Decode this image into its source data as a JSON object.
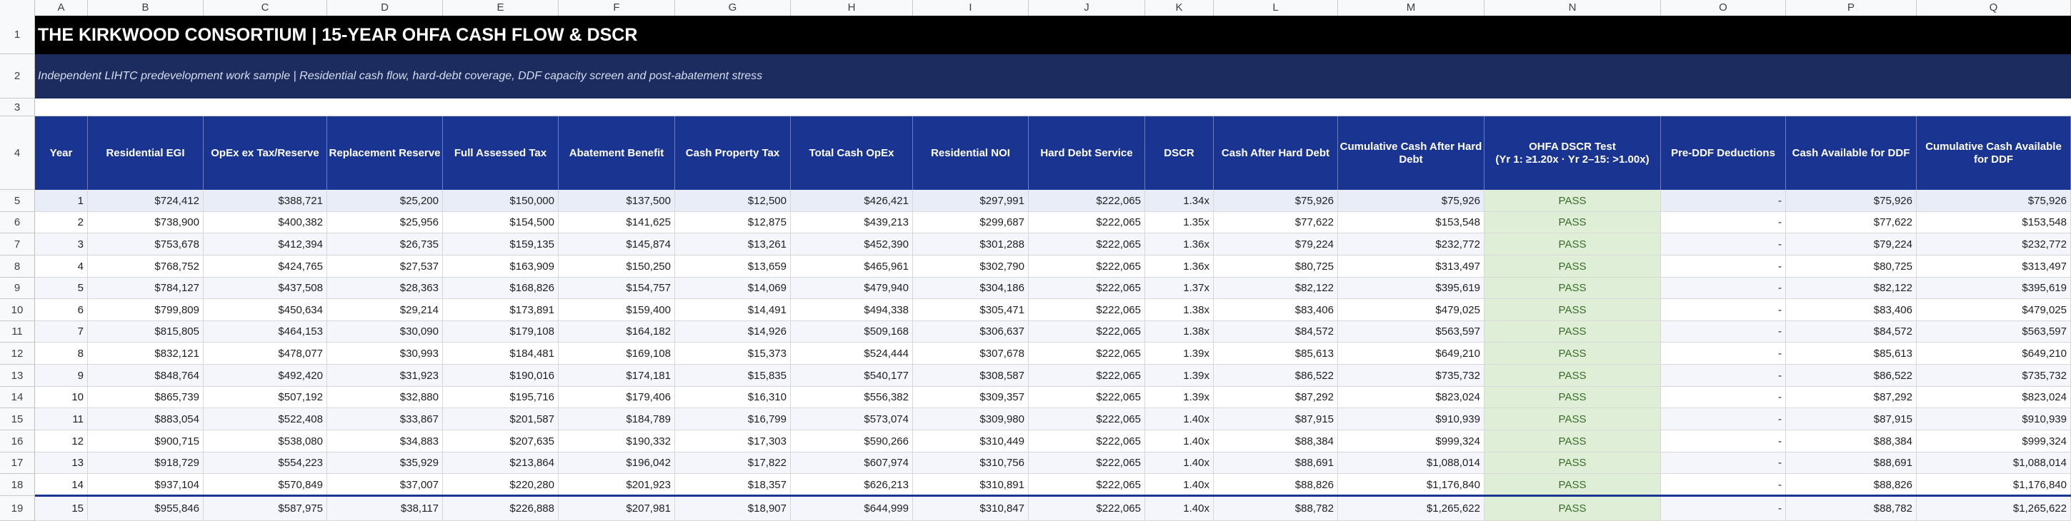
{
  "column_letters": [
    "A",
    "B",
    "C",
    "D",
    "E",
    "F",
    "G",
    "H",
    "I",
    "J",
    "K",
    "L",
    "M",
    "N",
    "O",
    "P",
    "Q"
  ],
  "row_numbers": [
    "1",
    "2",
    "3",
    "4",
    "5",
    "6",
    "7",
    "8",
    "9",
    "10",
    "11",
    "12",
    "13",
    "14",
    "15",
    "16",
    "17",
    "18",
    "19"
  ],
  "title": "THE KIRKWOOD CONSORTIUM | 15-YEAR OHFA CASH FLOW & DSCR",
  "subtitle": "Independent LIHTC predevelopment work sample | Residential cash flow, hard-debt coverage, DDF capacity screen and post-abatement stress",
  "headers": [
    "Year",
    "Residential EGI",
    "OpEx ex Tax/Reserve",
    "Replacement Reserve",
    "Full Assessed Tax",
    "Abatement Benefit",
    "Cash Property Tax",
    "Total Cash OpEx",
    "Residential NOI",
    "Hard Debt Service",
    "DSCR",
    "Cash After Hard Debt",
    "Cumulative Cash After Hard Debt",
    "OHFA DSCR Test\n(Yr 1: ≥1.20x · Yr 2–15: >1.00x)",
    "Pre-DDF Deductions",
    "Cash Available for DDF",
    "Cumulative Cash Available for DDF"
  ],
  "rows": [
    [
      "1",
      "$724,412",
      "$388,721",
      "$25,200",
      "$150,000",
      "$137,500",
      "$12,500",
      "$426,421",
      "$297,991",
      "$222,065",
      "1.34x",
      "$75,926",
      "$75,926",
      "PASS",
      "-",
      "$75,926",
      "$75,926"
    ],
    [
      "2",
      "$738,900",
      "$400,382",
      "$25,956",
      "$154,500",
      "$141,625",
      "$12,875",
      "$439,213",
      "$299,687",
      "$222,065",
      "1.35x",
      "$77,622",
      "$153,548",
      "PASS",
      "-",
      "$77,622",
      "$153,548"
    ],
    [
      "3",
      "$753,678",
      "$412,394",
      "$26,735",
      "$159,135",
      "$145,874",
      "$13,261",
      "$452,390",
      "$301,288",
      "$222,065",
      "1.36x",
      "$79,224",
      "$232,772",
      "PASS",
      "-",
      "$79,224",
      "$232,772"
    ],
    [
      "4",
      "$768,752",
      "$424,765",
      "$27,537",
      "$163,909",
      "$150,250",
      "$13,659",
      "$465,961",
      "$302,790",
      "$222,065",
      "1.36x",
      "$80,725",
      "$313,497",
      "PASS",
      "-",
      "$80,725",
      "$313,497"
    ],
    [
      "5",
      "$784,127",
      "$437,508",
      "$28,363",
      "$168,826",
      "$154,757",
      "$14,069",
      "$479,940",
      "$304,186",
      "$222,065",
      "1.37x",
      "$82,122",
      "$395,619",
      "PASS",
      "-",
      "$82,122",
      "$395,619"
    ],
    [
      "6",
      "$799,809",
      "$450,634",
      "$29,214",
      "$173,891",
      "$159,400",
      "$14,491",
      "$494,338",
      "$305,471",
      "$222,065",
      "1.38x",
      "$83,406",
      "$479,025",
      "PASS",
      "-",
      "$83,406",
      "$479,025"
    ],
    [
      "7",
      "$815,805",
      "$464,153",
      "$30,090",
      "$179,108",
      "$164,182",
      "$14,926",
      "$509,168",
      "$306,637",
      "$222,065",
      "1.38x",
      "$84,572",
      "$563,597",
      "PASS",
      "-",
      "$84,572",
      "$563,597"
    ],
    [
      "8",
      "$832,121",
      "$478,077",
      "$30,993",
      "$184,481",
      "$169,108",
      "$15,373",
      "$524,444",
      "$307,678",
      "$222,065",
      "1.39x",
      "$85,613",
      "$649,210",
      "PASS",
      "-",
      "$85,613",
      "$649,210"
    ],
    [
      "9",
      "$848,764",
      "$492,420",
      "$31,923",
      "$190,016",
      "$174,181",
      "$15,835",
      "$540,177",
      "$308,587",
      "$222,065",
      "1.39x",
      "$86,522",
      "$735,732",
      "PASS",
      "-",
      "$86,522",
      "$735,732"
    ],
    [
      "10",
      "$865,739",
      "$507,192",
      "$32,880",
      "$195,716",
      "$179,406",
      "$16,310",
      "$556,382",
      "$309,357",
      "$222,065",
      "1.39x",
      "$87,292",
      "$823,024",
      "PASS",
      "-",
      "$87,292",
      "$823,024"
    ],
    [
      "11",
      "$883,054",
      "$522,408",
      "$33,867",
      "$201,587",
      "$184,789",
      "$16,799",
      "$573,074",
      "$309,980",
      "$222,065",
      "1.40x",
      "$87,915",
      "$910,939",
      "PASS",
      "-",
      "$87,915",
      "$910,939"
    ],
    [
      "12",
      "$900,715",
      "$538,080",
      "$34,883",
      "$207,635",
      "$190,332",
      "$17,303",
      "$590,266",
      "$310,449",
      "$222,065",
      "1.40x",
      "$88,384",
      "$999,324",
      "PASS",
      "-",
      "$88,384",
      "$999,324"
    ],
    [
      "13",
      "$918,729",
      "$554,223",
      "$35,929",
      "$213,864",
      "$196,042",
      "$17,822",
      "$607,974",
      "$310,756",
      "$222,065",
      "1.40x",
      "$88,691",
      "$1,088,014",
      "PASS",
      "-",
      "$88,691",
      "$1,088,014"
    ],
    [
      "14",
      "$937,104",
      "$570,849",
      "$37,007",
      "$220,280",
      "$201,923",
      "$18,357",
      "$626,213",
      "$310,891",
      "$222,065",
      "1.40x",
      "$88,826",
      "$1,176,840",
      "PASS",
      "-",
      "$88,826",
      "$1,176,840"
    ],
    [
      "15",
      "$955,846",
      "$587,975",
      "$38,117",
      "$226,888",
      "$207,981",
      "$18,907",
      "$644,999",
      "$310,847",
      "$222,065",
      "1.40x",
      "$88,782",
      "$1,265,622",
      "PASS",
      "-",
      "$88,782",
      "$1,265,622"
    ]
  ]
}
